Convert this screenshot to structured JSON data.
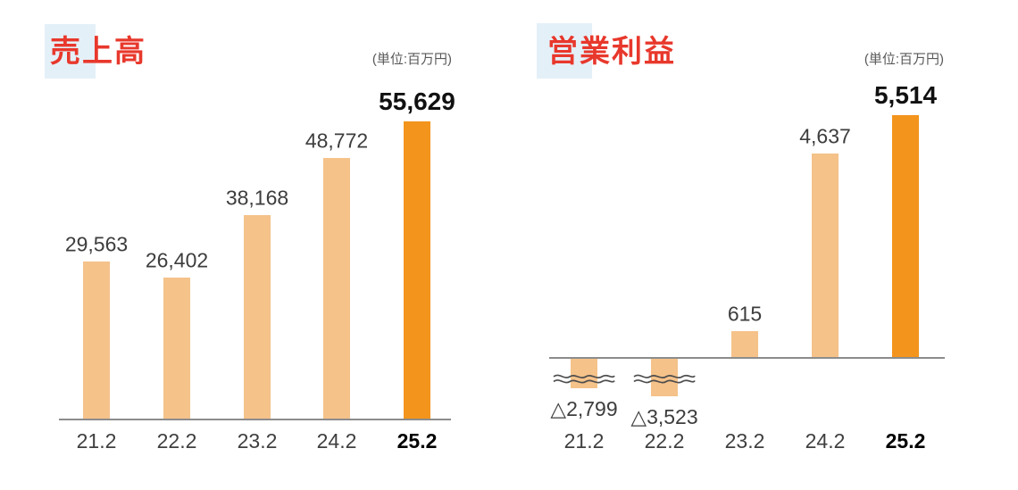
{
  "colors": {
    "background": "#ffffff",
    "bar": "#F5C28A",
    "highlight_bar": "#F3941C",
    "title_text": "#E8382C",
    "title_highlight": "#E4F0F8",
    "axis_line": "#8C8C8C",
    "value_label": "#3d3d3d",
    "emphasis_label": "#111111",
    "unit_label": "#595959",
    "break_mark": "#4d4d4d"
  },
  "chart_data": [
    {
      "type": "bar",
      "title": "売上高",
      "unit_label": "(単位:百万円)",
      "categories": [
        "21.2",
        "22.2",
        "23.2",
        "24.2",
        "25.2"
      ],
      "values": [
        29563,
        26402,
        38168,
        48772,
        55629
      ],
      "value_labels": [
        "29,563",
        "26,402",
        "38,168",
        "48,772",
        "55,629"
      ],
      "highlight_index": 4,
      "ylim": [
        0,
        55629
      ],
      "grid": false,
      "legend": false,
      "truncated_negative_bars": false
    },
    {
      "type": "bar",
      "title": "営業利益",
      "unit_label": "(単位:百万円)",
      "categories": [
        "21.2",
        "22.2",
        "23.2",
        "24.2",
        "25.2"
      ],
      "values": [
        -2799,
        -3523,
        615,
        4637,
        5514
      ],
      "value_labels": [
        "△2,799",
        "△3,523",
        "615",
        "4,637",
        "5,514"
      ],
      "highlight_index": 4,
      "ylim": [
        -3523,
        5514
      ],
      "grid": false,
      "legend": false,
      "truncated_negative_bars": true,
      "negative_notation": "triangle"
    }
  ]
}
